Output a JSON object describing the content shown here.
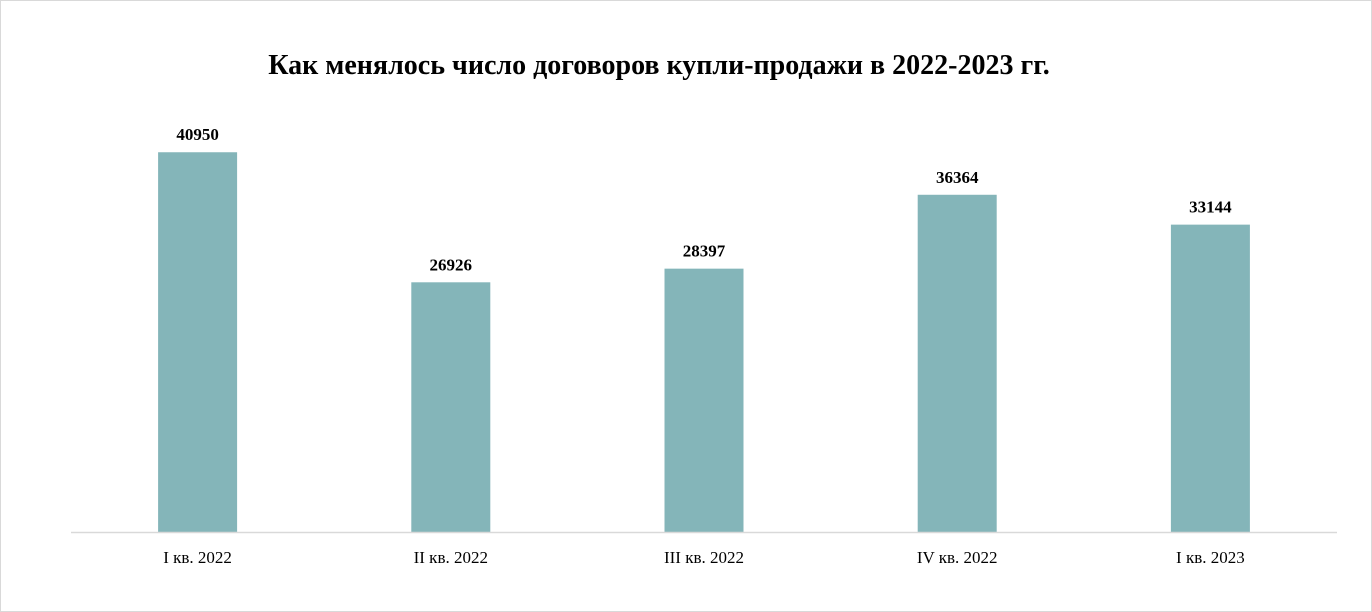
{
  "chart_data": {
    "type": "bar",
    "title": "Как менялось число договоров купли-продажи в 2022-2023 гг.",
    "categories": [
      "I кв. 2022",
      "II кв. 2022",
      "III кв. 2022",
      "IV кв. 2022",
      "I кв. 2023"
    ],
    "values": [
      40950,
      26926,
      28397,
      36364,
      33144
    ],
    "xlabel": "",
    "ylabel": "",
    "ylim": [
      0,
      41300
    ],
    "grid": false,
    "legend": "none",
    "colors": {
      "bar": "#84B5B9",
      "axis": "#d9d9d9",
      "text": "#000000"
    }
  }
}
